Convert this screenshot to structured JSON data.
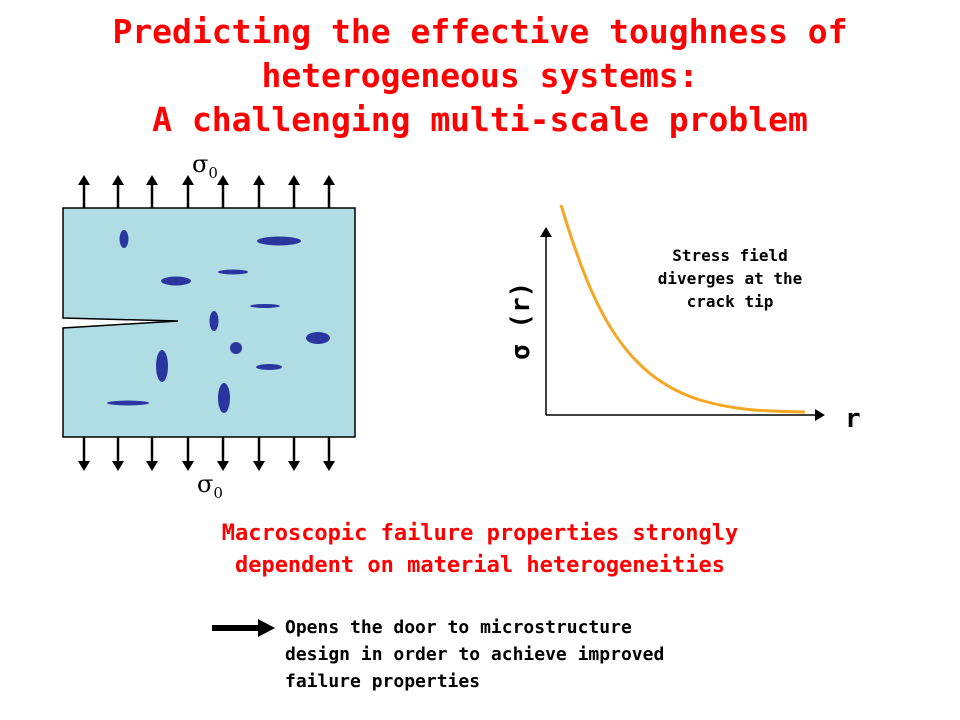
{
  "title": {
    "line1": "Predicting the effective toughness of",
    "line2": "heterogeneous systems:",
    "line3": "A challenging multi-scale problem"
  },
  "sigma_top": {
    "symbol": "σ",
    "sub": "0"
  },
  "sigma_bottom": {
    "symbol": "σ",
    "sub": "0"
  },
  "plot": {
    "ylabel": "σ (r)",
    "xlabel": "r",
    "note_lines": [
      "Stress field",
      "diverges at the",
      "crack tip"
    ],
    "curve_color": "#f5a623"
  },
  "macro_text": {
    "line1": "Macroscopic failure properties strongly",
    "line2": "dependent on material heterogeneities"
  },
  "conclusion": {
    "lines": [
      "Opens the door to microstructure",
      "design in order to achieve improved",
      "failure properties"
    ]
  },
  "colors": {
    "title": "#ff0000",
    "specimen_fill": "#b0dde4",
    "inclusion": "#2b35a0",
    "text": "#000000"
  }
}
